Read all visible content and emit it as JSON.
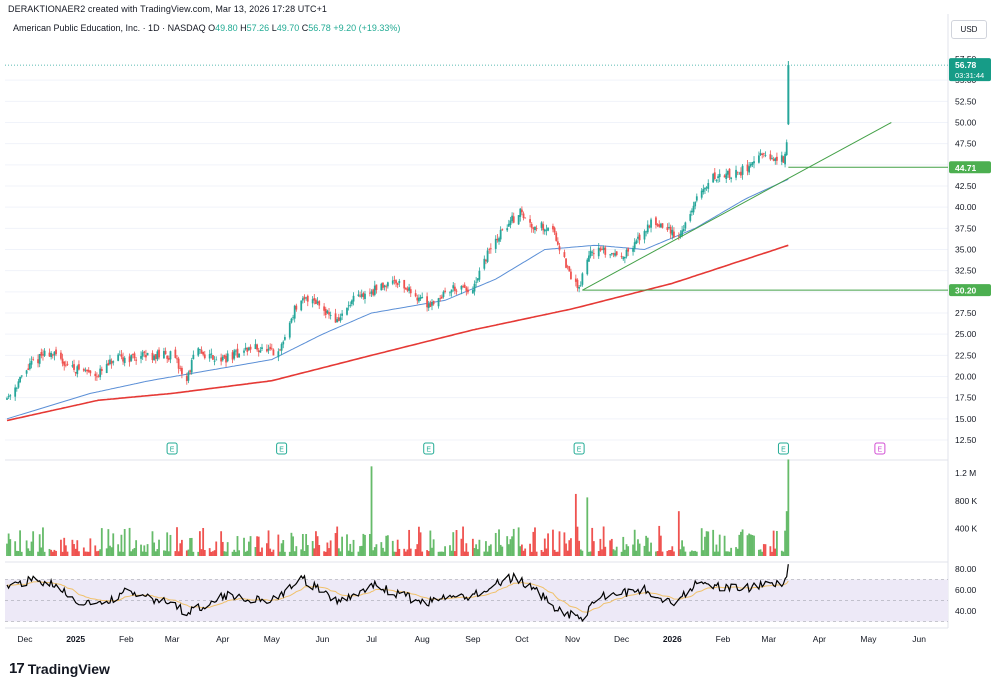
{
  "header": {
    "credit": "DERAKTIONAER2 created with TradingView.com, Mar 13, 2026 17:28 UTC+1",
    "symbol": "American Public Education, Inc. · 1D · NASDAQ",
    "o_label": "O",
    "o_value": "49.80",
    "h_label": "H",
    "h_value": "57.26",
    "l_label": "L",
    "l_value": "49.70",
    "c_label": "C",
    "c_value": "56.78",
    "change": "+9.20 (+19.33%)"
  },
  "currency": "USD",
  "brand": {
    "logo": "17",
    "name": "TradingView"
  },
  "colors": {
    "up": "#26a69a",
    "down": "#ef5350",
    "vol_up": "#66bb6a",
    "vol_down": "#ef5350",
    "ma_slow": "#e53935",
    "ma_fast": "#5b8fd6",
    "trend": "#43a047",
    "rsi": "#000000",
    "rsi_ma": "#f0c16a",
    "rsi_band": "#ede9f7",
    "earnings": "#22ab94",
    "earnings_future": "#d24fd4"
  },
  "chart_data": {
    "type": "candlestick",
    "price_axis": {
      "ticks": [
        "55.00",
        "52.50",
        "50.00",
        "47.50",
        "45.00",
        "42.50",
        "40.00",
        "37.50",
        "35.00",
        "32.50",
        "30.00",
        "27.50",
        "25.00",
        "22.50",
        "20.00",
        "17.50",
        "15.00",
        "12.50"
      ],
      "partial_top": "57.50",
      "ylim": [
        12.5,
        57.5
      ]
    },
    "volume_axis": {
      "ticks": [
        "1.2 M",
        "800 K",
        "400 K"
      ]
    },
    "rsi_axis": {
      "ticks": [
        "80.00",
        "60.00",
        "40.00"
      ],
      "bands": [
        30,
        70
      ]
    },
    "x_labels": [
      {
        "label": "Dec",
        "bold": false
      },
      {
        "label": "2025",
        "bold": true
      },
      {
        "label": "Feb",
        "bold": false
      },
      {
        "label": "Mar",
        "bold": false
      },
      {
        "label": "Apr",
        "bold": false
      },
      {
        "label": "May",
        "bold": false
      },
      {
        "label": "Jun",
        "bold": false
      },
      {
        "label": "Jul",
        "bold": false
      },
      {
        "label": "Aug",
        "bold": false
      },
      {
        "label": "Sep",
        "bold": false
      },
      {
        "label": "Oct",
        "bold": false
      },
      {
        "label": "Nov",
        "bold": false
      },
      {
        "label": "Dec",
        "bold": false
      },
      {
        "label": "2026",
        "bold": true
      },
      {
        "label": "Feb",
        "bold": false
      },
      {
        "label": "Mar",
        "bold": false
      },
      {
        "label": "Apr",
        "bold": false
      },
      {
        "label": "May",
        "bold": false
      },
      {
        "label": "Jun",
        "bold": false
      }
    ],
    "price_anchors": [
      [
        "2024-11-20",
        17.5
      ],
      [
        "2024-12-05",
        21.5
      ],
      [
        "2024-12-15",
        23.0
      ],
      [
        "2024-12-30",
        21.0
      ],
      [
        "2025-01-15",
        20.3
      ],
      [
        "2025-01-25",
        22.0
      ],
      [
        "2025-02-15",
        22.5
      ],
      [
        "2025-03-01",
        22.5
      ],
      [
        "2025-03-10",
        19.5
      ],
      [
        "2025-03-15",
        23.0
      ],
      [
        "2025-04-01",
        22.0
      ],
      [
        "2025-04-20",
        23.5
      ],
      [
        "2025-05-05",
        22.5
      ],
      [
        "2025-05-15",
        28.0
      ],
      [
        "2025-05-25",
        29.5
      ],
      [
        "2025-06-10",
        26.5
      ],
      [
        "2025-06-20",
        29.0
      ],
      [
        "2025-07-01",
        30.0
      ],
      [
        "2025-07-15",
        31.5
      ],
      [
        "2025-07-25",
        30.0
      ],
      [
        "2025-08-05",
        28.5
      ],
      [
        "2025-08-20",
        30.5
      ],
      [
        "2025-09-01",
        30.0
      ],
      [
        "2025-09-10",
        34.5
      ],
      [
        "2025-09-20",
        37.5
      ],
      [
        "2025-09-30",
        39.5
      ],
      [
        "2025-10-05",
        38.0
      ],
      [
        "2025-10-20",
        37.5
      ],
      [
        "2025-10-30",
        32.0
      ],
      [
        "2025-11-05",
        30.5
      ],
      [
        "2025-11-12",
        35.0
      ],
      [
        "2025-11-25",
        34.5
      ],
      [
        "2025-12-05",
        34.5
      ],
      [
        "2025-12-20",
        38.5
      ],
      [
        "2026-01-05",
        36.5
      ],
      [
        "2026-01-15",
        40.5
      ],
      [
        "2026-01-25",
        43.5
      ],
      [
        "2026-02-10",
        44.0
      ],
      [
        "2026-02-25",
        46.0
      ],
      [
        "2026-03-05",
        45.5
      ],
      [
        "2026-03-11",
        45.8
      ],
      [
        "2026-03-12",
        47.58
      ]
    ],
    "last_bar": {
      "date": "2026-03-13",
      "open": 49.8,
      "high": 57.26,
      "low": 49.7,
      "close": 56.78
    },
    "ma_slow": [
      [
        "2024-11-20",
        14.8
      ],
      [
        "2025-01-15",
        17.2
      ],
      [
        "2025-03-01",
        18.0
      ],
      [
        "2025-05-01",
        19.5
      ],
      [
        "2025-07-01",
        22.5
      ],
      [
        "2025-09-01",
        25.5
      ],
      [
        "2025-11-01",
        28.0
      ],
      [
        "2026-01-01",
        31.0
      ],
      [
        "2026-03-13",
        35.5
      ]
    ],
    "ma_fast": [
      [
        "2024-11-20",
        15.0
      ],
      [
        "2025-01-10",
        18.0
      ],
      [
        "2025-02-15",
        19.5
      ],
      [
        "2025-04-01",
        21.0
      ],
      [
        "2025-05-01",
        22.0
      ],
      [
        "2025-06-01",
        25.0
      ],
      [
        "2025-07-01",
        27.5
      ],
      [
        "2025-08-15",
        29.0
      ],
      [
        "2025-09-15",
        31.5
      ],
      [
        "2025-10-15",
        35.0
      ],
      [
        "2025-11-15",
        35.5
      ],
      [
        "2025-12-15",
        35.0
      ],
      [
        "2026-01-15",
        37.5
      ],
      [
        "2026-02-15",
        41.0
      ],
      [
        "2026-03-13",
        43.3
      ]
    ],
    "trendline": {
      "from": [
        "2025-11-07",
        30.2
      ],
      "to": [
        "2026-05-15",
        50.0
      ]
    },
    "levels": [
      {
        "price": 44.71,
        "label": "44.71",
        "from": "2026-03-13"
      },
      {
        "price": 30.2,
        "label": "30.20",
        "from": "2025-11-07"
      }
    ],
    "last_price": {
      "label": "56.78",
      "countdown": "03:31:44",
      "value": 56.78
    },
    "earnings": [
      {
        "date": "2024-11-07",
        "label": "E",
        "future": false
      },
      {
        "date": "2025-03-01",
        "label": "E",
        "future": false
      },
      {
        "date": "2025-05-07",
        "label": "E",
        "future": false
      },
      {
        "date": "2025-08-05",
        "label": "E",
        "future": false
      },
      {
        "date": "2025-11-05",
        "label": "E",
        "future": false
      },
      {
        "date": "2026-03-10",
        "label": "E",
        "future": false
      },
      {
        "date": "2026-05-08",
        "label": "E",
        "future": true
      }
    ],
    "volume_spikes": [
      [
        "2025-07-01",
        1300000
      ],
      [
        "2025-11-03",
        900000
      ],
      [
        "2025-11-10",
        850000
      ],
      [
        "2026-01-05",
        650000
      ],
      [
        "2026-03-12",
        650000
      ],
      [
        "2026-03-13",
        1400000
      ]
    ],
    "rsi_anchors": [
      [
        "2024-11-20",
        62
      ],
      [
        "2024-12-05",
        70
      ],
      [
        "2024-12-15",
        67
      ],
      [
        "2025-01-01",
        50
      ],
      [
        "2025-01-15",
        45
      ],
      [
        "2025-02-01",
        58
      ],
      [
        "2025-03-01",
        47
      ],
      [
        "2025-03-10",
        38
      ],
      [
        "2025-04-01",
        55
      ],
      [
        "2025-05-01",
        50
      ],
      [
        "2025-05-20",
        70
      ],
      [
        "2025-06-10",
        48
      ],
      [
        "2025-07-01",
        65
      ],
      [
        "2025-08-01",
        48
      ],
      [
        "2025-09-01",
        55
      ],
      [
        "2025-09-25",
        72
      ],
      [
        "2025-10-05",
        65
      ],
      [
        "2025-10-20",
        45
      ],
      [
        "2025-11-05",
        32
      ],
      [
        "2025-11-20",
        55
      ],
      [
        "2025-12-15",
        60
      ],
      [
        "2026-01-01",
        48
      ],
      [
        "2026-01-15",
        65
      ],
      [
        "2026-02-10",
        62
      ],
      [
        "2026-03-10",
        65
      ],
      [
        "2026-03-13",
        82
      ]
    ]
  }
}
